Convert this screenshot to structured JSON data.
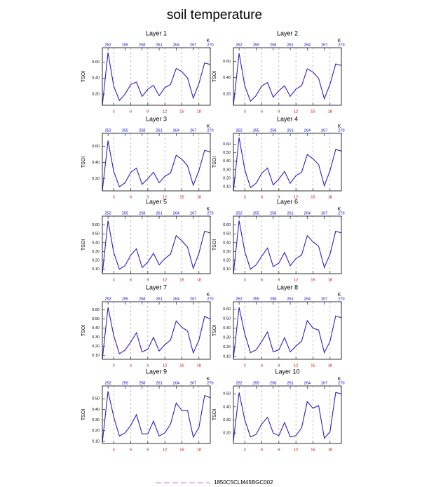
{
  "title": "soil temperature",
  "legend": {
    "name": "1850C5CLM45BGC002",
    "color": "#c9a0e6"
  },
  "chart_data": [
    {
      "type": "line",
      "title": "Layer 1",
      "ylabel": "TSOI",
      "x": [
        1,
        2,
        3,
        4,
        5,
        6,
        7,
        8,
        9,
        10,
        11,
        12,
        13,
        14,
        15,
        16,
        17,
        18,
        19,
        20
      ],
      "values": [
        0.06,
        0.72,
        0.3,
        0.12,
        0.2,
        0.32,
        0.35,
        0.17,
        0.26,
        0.31,
        0.18,
        0.28,
        0.32,
        0.52,
        0.48,
        0.4,
        0.15,
        0.33,
        0.59,
        0.57
      ],
      "color": "#3a1ac0",
      "xlim": [
        1,
        20
      ],
      "xticks": [
        3,
        6,
        9,
        12,
        15,
        18
      ],
      "x2lim": [
        251,
        270
      ],
      "x2ticks": [
        252,
        255,
        258,
        261,
        264,
        267,
        270
      ],
      "x2label": "K",
      "ylim": [
        0.06,
        0.78
      ],
      "yticks": [
        {
          "value": 0.2,
          "label": "0.20"
        },
        {
          "value": 0.4,
          "label": "0.40"
        },
        {
          "value": 0.6,
          "label": "0.60"
        }
      ],
      "xgrid": true,
      "xtick_color": "#d00000",
      "x2tick_color": "#0000d0"
    },
    {
      "type": "line",
      "title": "Layer 2",
      "ylabel": "TSOI",
      "x": [
        1,
        2,
        3,
        4,
        5,
        6,
        7,
        8,
        9,
        10,
        11,
        12,
        13,
        14,
        15,
        16,
        17,
        18,
        19,
        20
      ],
      "values": [
        0.06,
        0.7,
        0.3,
        0.11,
        0.18,
        0.3,
        0.34,
        0.16,
        0.24,
        0.3,
        0.17,
        0.26,
        0.3,
        0.51,
        0.47,
        0.39,
        0.14,
        0.32,
        0.57,
        0.55
      ],
      "color": "#3a1ac0",
      "xlim": [
        1,
        20
      ],
      "xticks": [
        3,
        6,
        9,
        12,
        15,
        18
      ],
      "x2lim": [
        251,
        270
      ],
      "x2ticks": [
        252,
        255,
        258,
        261,
        264,
        267,
        270
      ],
      "x2label": "K",
      "ylim": [
        0.06,
        0.77
      ],
      "yticks": [
        {
          "value": 0.2,
          "label": "0.20"
        },
        {
          "value": 0.4,
          "label": "0.40"
        },
        {
          "value": 0.6,
          "label": "0.60"
        }
      ],
      "xgrid": true,
      "xtick_color": "#d00000",
      "x2tick_color": "#0000d0"
    },
    {
      "type": "line",
      "title": "Layer 3",
      "ylabel": "TSOI",
      "x": [
        1,
        2,
        3,
        4,
        5,
        6,
        7,
        8,
        9,
        10,
        11,
        12,
        13,
        14,
        15,
        16,
        17,
        18,
        19,
        20
      ],
      "values": [
        0.05,
        0.67,
        0.29,
        0.1,
        0.15,
        0.28,
        0.33,
        0.13,
        0.2,
        0.28,
        0.15,
        0.23,
        0.27,
        0.49,
        0.44,
        0.36,
        0.12,
        0.3,
        0.55,
        0.53
      ],
      "color": "#3a1ac0",
      "xlim": [
        1,
        20
      ],
      "xticks": [
        3,
        6,
        9,
        12,
        15,
        18
      ],
      "x2lim": [
        251,
        270
      ],
      "x2ticks": [
        252,
        255,
        258,
        261,
        264,
        267,
        270
      ],
      "x2label": "K",
      "ylim": [
        0.05,
        0.76
      ],
      "yticks": [
        {
          "value": 0.2,
          "label": "0.20"
        },
        {
          "value": 0.4,
          "label": "0.40"
        },
        {
          "value": 0.6,
          "label": "0.60"
        }
      ],
      "xgrid": true,
      "xtick_color": "#d00000",
      "x2tick_color": "#0000d0"
    },
    {
      "type": "line",
      "title": "Layer 4",
      "ylabel": "TSOI",
      "x": [
        1,
        2,
        3,
        4,
        5,
        6,
        7,
        8,
        9,
        10,
        11,
        12,
        13,
        14,
        15,
        16,
        17,
        18,
        19,
        20
      ],
      "values": [
        0.05,
        0.68,
        0.3,
        0.09,
        0.14,
        0.26,
        0.32,
        0.12,
        0.19,
        0.28,
        0.14,
        0.23,
        0.27,
        0.48,
        0.43,
        0.36,
        0.11,
        0.29,
        0.54,
        0.52
      ],
      "color": "#3a1ac0",
      "xlim": [
        1,
        20
      ],
      "xticks": [
        3,
        6,
        9,
        12,
        15,
        18
      ],
      "x2lim": [
        251,
        270
      ],
      "x2ticks": [
        252,
        255,
        258,
        261,
        264,
        267,
        270
      ],
      "x2label": "K",
      "ylim": [
        0.05,
        0.73
      ],
      "yticks": [
        {
          "value": 0.1,
          "label": "0.10"
        },
        {
          "value": 0.2,
          "label": "0.20"
        },
        {
          "value": 0.3,
          "label": "0.30"
        },
        {
          "value": 0.4,
          "label": "0.40"
        },
        {
          "value": 0.5,
          "label": "0.50"
        },
        {
          "value": 0.6,
          "label": "0.60"
        }
      ],
      "xgrid": true,
      "xtick_color": "#d00000",
      "x2tick_color": "#0000d0"
    },
    {
      "type": "line",
      "title": "Layer 5",
      "ylabel": "TSOI",
      "x": [
        1,
        2,
        3,
        4,
        5,
        6,
        7,
        8,
        9,
        10,
        11,
        12,
        13,
        14,
        15,
        16,
        17,
        18,
        19,
        20
      ],
      "values": [
        0.05,
        0.65,
        0.29,
        0.1,
        0.14,
        0.26,
        0.33,
        0.12,
        0.18,
        0.28,
        0.15,
        0.22,
        0.27,
        0.48,
        0.42,
        0.35,
        0.11,
        0.28,
        0.53,
        0.51
      ],
      "color": "#3a1ac0",
      "xlim": [
        1,
        20
      ],
      "xticks": [
        3,
        6,
        9,
        12,
        15,
        18
      ],
      "x2lim": [
        251,
        270
      ],
      "x2ticks": [
        252,
        255,
        258,
        261,
        264,
        267,
        270
      ],
      "x2label": "K",
      "ylim": [
        0.05,
        0.7
      ],
      "yticks": [
        {
          "value": 0.1,
          "label": "0.10"
        },
        {
          "value": 0.2,
          "label": "0.20"
        },
        {
          "value": 0.3,
          "label": "0.30"
        },
        {
          "value": 0.4,
          "label": "0.40"
        },
        {
          "value": 0.5,
          "label": "0.50"
        },
        {
          "value": 0.6,
          "label": "0.60"
        }
      ],
      "xgrid": true,
      "xtick_color": "#d00000",
      "x2tick_color": "#0000d0"
    },
    {
      "type": "line",
      "title": "Layer 6",
      "ylabel": "TSOI",
      "x": [
        1,
        2,
        3,
        4,
        5,
        6,
        7,
        8,
        9,
        10,
        11,
        12,
        13,
        14,
        15,
        16,
        17,
        18,
        19,
        20
      ],
      "values": [
        0.05,
        0.65,
        0.3,
        0.1,
        0.15,
        0.25,
        0.34,
        0.13,
        0.17,
        0.29,
        0.14,
        0.22,
        0.26,
        0.48,
        0.41,
        0.36,
        0.12,
        0.27,
        0.53,
        0.51
      ],
      "color": "#3a1ac0",
      "xlim": [
        1,
        20
      ],
      "xticks": [
        3,
        6,
        9,
        12,
        15,
        18
      ],
      "x2lim": [
        251,
        270
      ],
      "x2ticks": [
        252,
        255,
        258,
        261,
        264,
        267,
        270
      ],
      "x2label": "K",
      "ylim": [
        0.05,
        0.7
      ],
      "yticks": [
        {
          "value": 0.1,
          "label": "0.10"
        },
        {
          "value": 0.2,
          "label": "0.20"
        },
        {
          "value": 0.3,
          "label": "0.30"
        },
        {
          "value": 0.4,
          "label": "0.40"
        },
        {
          "value": 0.5,
          "label": "0.50"
        },
        {
          "value": 0.6,
          "label": "0.60"
        }
      ],
      "xgrid": true,
      "xtick_color": "#d00000",
      "x2tick_color": "#0000d0"
    },
    {
      "type": "line",
      "title": "Layer 7",
      "ylabel": "TSOI",
      "x": [
        1,
        2,
        3,
        4,
        5,
        6,
        7,
        8,
        9,
        10,
        11,
        12,
        13,
        14,
        15,
        16,
        17,
        18,
        19,
        20
      ],
      "values": [
        0.06,
        0.63,
        0.32,
        0.12,
        0.16,
        0.25,
        0.35,
        0.14,
        0.17,
        0.3,
        0.15,
        0.22,
        0.27,
        0.48,
        0.41,
        0.37,
        0.13,
        0.27,
        0.53,
        0.5
      ],
      "color": "#3a1ac0",
      "xlim": [
        1,
        20
      ],
      "xticks": [
        3,
        6,
        9,
        12,
        15,
        18
      ],
      "x2lim": [
        251,
        270
      ],
      "x2ticks": [
        252,
        255,
        258,
        261,
        264,
        267,
        270
      ],
      "x2label": "K",
      "ylim": [
        0.06,
        0.69
      ],
      "yticks": [
        {
          "value": 0.1,
          "label": "0.10"
        },
        {
          "value": 0.2,
          "label": "0.20"
        },
        {
          "value": 0.3,
          "label": "0.30"
        },
        {
          "value": 0.4,
          "label": "0.40"
        },
        {
          "value": 0.5,
          "label": "0.50"
        },
        {
          "value": 0.6,
          "label": "0.60"
        }
      ],
      "xgrid": true,
      "xtick_color": "#d00000",
      "x2tick_color": "#0000d0"
    },
    {
      "type": "line",
      "title": "Layer 8",
      "ylabel": "TSOI",
      "x": [
        1,
        2,
        3,
        4,
        5,
        6,
        7,
        8,
        9,
        10,
        11,
        12,
        13,
        14,
        15,
        16,
        17,
        18,
        19,
        20
      ],
      "values": [
        0.08,
        0.62,
        0.34,
        0.14,
        0.17,
        0.26,
        0.36,
        0.15,
        0.17,
        0.3,
        0.15,
        0.21,
        0.26,
        0.48,
        0.4,
        0.38,
        0.14,
        0.26,
        0.53,
        0.51
      ],
      "color": "#3a1ac0",
      "xlim": [
        1,
        20
      ],
      "xticks": [
        3,
        6,
        9,
        12,
        15,
        18
      ],
      "x2lim": [
        251,
        270
      ],
      "x2ticks": [
        252,
        255,
        258,
        261,
        264,
        267,
        270
      ],
      "x2label": "K",
      "ylim": [
        0.07,
        0.68
      ],
      "yticks": [
        {
          "value": 0.1,
          "label": "0.10"
        },
        {
          "value": 0.2,
          "label": "0.20"
        },
        {
          "value": 0.3,
          "label": "0.30"
        },
        {
          "value": 0.4,
          "label": "0.40"
        },
        {
          "value": 0.5,
          "label": "0.50"
        },
        {
          "value": 0.6,
          "label": "0.60"
        }
      ],
      "xgrid": true,
      "xtick_color": "#d00000",
      "x2tick_color": "#0000d0"
    },
    {
      "type": "line",
      "title": "Layer 9",
      "ylabel": "TSOI",
      "x": [
        1,
        2,
        3,
        4,
        5,
        6,
        7,
        8,
        9,
        10,
        11,
        12,
        13,
        14,
        15,
        16,
        17,
        18,
        19,
        20
      ],
      "values": [
        0.09,
        0.57,
        0.33,
        0.15,
        0.18,
        0.25,
        0.35,
        0.17,
        0.17,
        0.29,
        0.15,
        0.18,
        0.26,
        0.46,
        0.39,
        0.39,
        0.14,
        0.23,
        0.53,
        0.51
      ],
      "color": "#3a1ac0",
      "xlim": [
        1,
        20
      ],
      "xticks": [
        3,
        6,
        9,
        12,
        15,
        18
      ],
      "x2lim": [
        251,
        270
      ],
      "x2ticks": [
        252,
        255,
        258,
        261,
        264,
        267,
        270
      ],
      "x2label": "K",
      "ylim": [
        0.08,
        0.62
      ],
      "yticks": [
        {
          "value": 0.1,
          "label": "0.10"
        },
        {
          "value": 0.2,
          "label": "0.20"
        },
        {
          "value": 0.3,
          "label": "0.30"
        },
        {
          "value": 0.4,
          "label": "0.40"
        },
        {
          "value": 0.5,
          "label": "0.50"
        }
      ],
      "xgrid": true,
      "xtick_color": "#d00000",
      "x2tick_color": "#0000d0"
    },
    {
      "type": "line",
      "title": "Layer 10",
      "ylabel": "TSOI",
      "x": [
        1,
        2,
        3,
        4,
        5,
        6,
        7,
        8,
        9,
        10,
        11,
        12,
        13,
        14,
        15,
        16,
        17,
        18,
        19,
        20
      ],
      "values": [
        0.14,
        0.51,
        0.3,
        0.17,
        0.19,
        0.27,
        0.32,
        0.2,
        0.18,
        0.28,
        0.17,
        0.18,
        0.24,
        0.44,
        0.39,
        0.41,
        0.16,
        0.21,
        0.51,
        0.5
      ],
      "color": "#3a1ac0",
      "xlim": [
        1,
        20
      ],
      "xticks": [
        3,
        6,
        9,
        12,
        15,
        18
      ],
      "x2lim": [
        251,
        270
      ],
      "x2ticks": [
        252,
        255,
        258,
        261,
        264,
        267,
        270
      ],
      "x2label": "K",
      "ylim": [
        0.12,
        0.56
      ],
      "yticks": [
        {
          "value": 0.2,
          "label": "0.20"
        },
        {
          "value": 0.3,
          "label": "0.30"
        },
        {
          "value": 0.4,
          "label": "0.40"
        },
        {
          "value": 0.5,
          "label": "0.50"
        }
      ],
      "xgrid": true,
      "xtick_color": "#d00000",
      "x2tick_color": "#0000d0"
    }
  ]
}
